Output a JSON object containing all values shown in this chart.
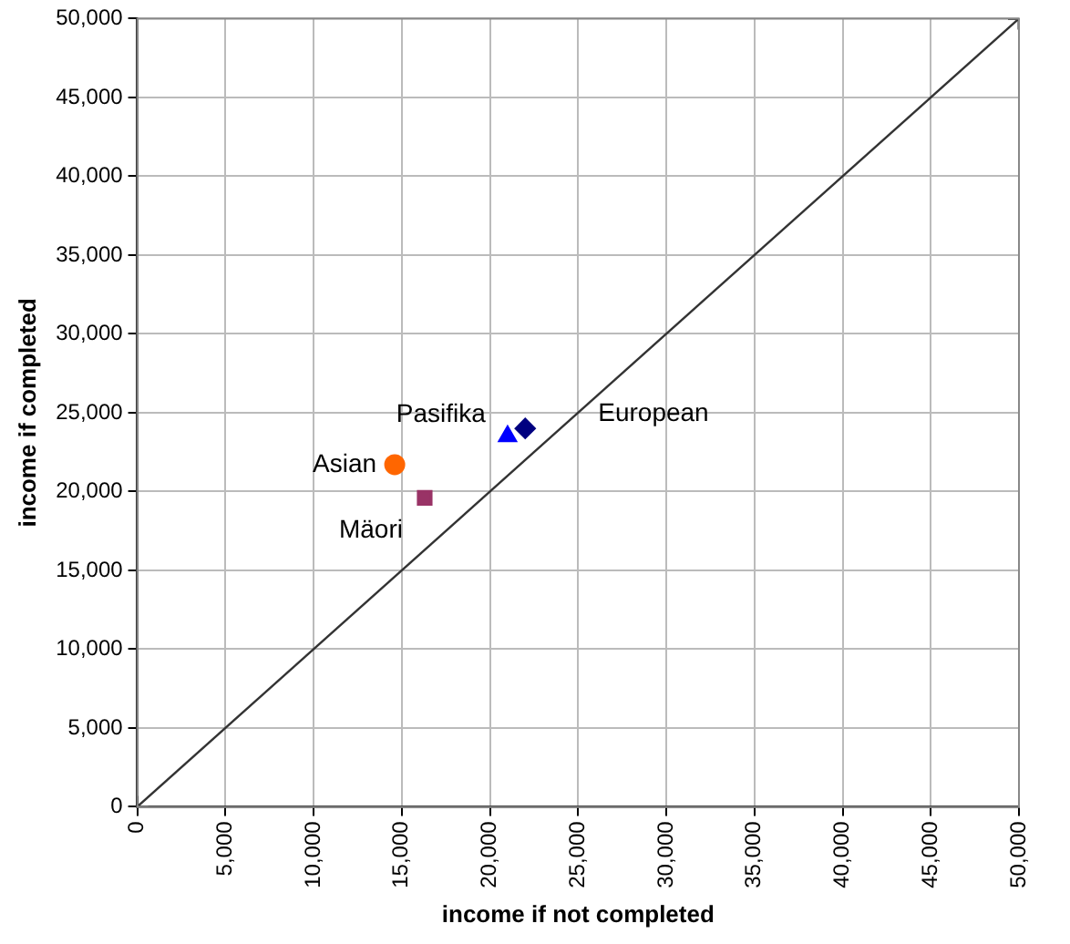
{
  "chart_data": {
    "type": "scatter",
    "xlabel": "income if not completed",
    "ylabel": "income if completed",
    "xlim": [
      0,
      50000
    ],
    "ylim": [
      0,
      50000
    ],
    "xticks": [
      {
        "value": 0,
        "label": "0"
      },
      {
        "value": 5000,
        "label": "5,000"
      },
      {
        "value": 10000,
        "label": "10,000"
      },
      {
        "value": 15000,
        "label": "15,000"
      },
      {
        "value": 20000,
        "label": "20,000"
      },
      {
        "value": 25000,
        "label": "25,000"
      },
      {
        "value": 30000,
        "label": "30,000"
      },
      {
        "value": 35000,
        "label": "35,000"
      },
      {
        "value": 40000,
        "label": "40,000"
      },
      {
        "value": 45000,
        "label": "45,000"
      },
      {
        "value": 50000,
        "label": "50,000"
      }
    ],
    "yticks": [
      {
        "value": 0,
        "label": "0"
      },
      {
        "value": 5000,
        "label": "5,000"
      },
      {
        "value": 10000,
        "label": "10,000"
      },
      {
        "value": 15000,
        "label": "15,000"
      },
      {
        "value": 20000,
        "label": "20,000"
      },
      {
        "value": 25000,
        "label": "25,000"
      },
      {
        "value": 30000,
        "label": "30,000"
      },
      {
        "value": 35000,
        "label": "35,000"
      },
      {
        "value": 40000,
        "label": "40,000"
      },
      {
        "value": 45000,
        "label": "45,000"
      },
      {
        "value": 50000,
        "label": "50,000"
      }
    ],
    "grid": true,
    "legend": false,
    "series": [
      {
        "name": "European",
        "type": "scatter",
        "marker": "diamond",
        "color": "#000080",
        "x": [
          22000
        ],
        "values": [
          24000
        ]
      },
      {
        "name": "Mäori",
        "type": "scatter",
        "marker": "square",
        "color": "#993366",
        "x": [
          16300
        ],
        "values": [
          19600
        ]
      },
      {
        "name": "Pasifika",
        "type": "scatter",
        "marker": "triangle",
        "color": "#0000ff",
        "x": [
          21000
        ],
        "values": [
          23500
        ]
      },
      {
        "name": "Asian",
        "type": "scatter",
        "marker": "circle",
        "color": "#ff6600",
        "x": [
          14600
        ],
        "values": [
          21700
        ]
      },
      {
        "type": "line",
        "marker": "cross",
        "color": "#333333",
        "x": [
          0,
          50000
        ],
        "values": [
          0,
          50000
        ]
      }
    ]
  }
}
